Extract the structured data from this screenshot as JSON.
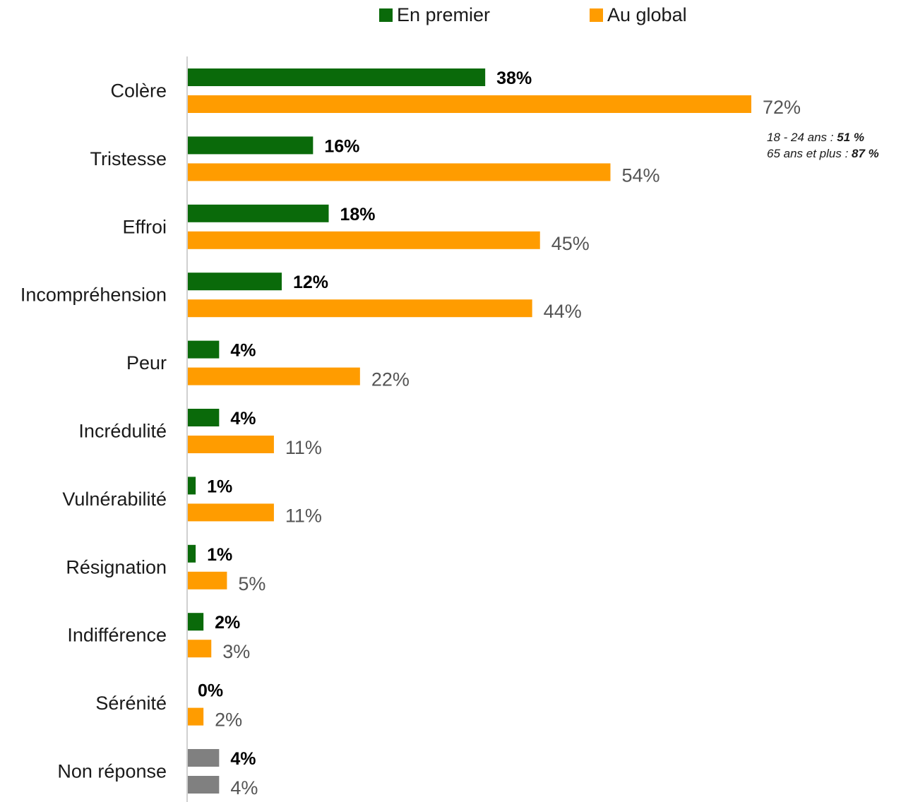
{
  "legend": {
    "first_label": "En premier",
    "global_label": "Au global"
  },
  "colors": {
    "first": "#0a6a0a",
    "global": "#ff9c00",
    "nonresponse": "#808080",
    "axis": "#d0d0d0",
    "first_label": "#000000",
    "global_label": "#555555"
  },
  "chart_data": {
    "type": "bar",
    "orientation": "horizontal",
    "categories": [
      "Colère",
      "Tristesse",
      "Effroi",
      "Incompréhension",
      "Peur",
      "Incrédulité",
      "Vulnérabilité",
      "Résignation",
      "Indifférence",
      "Sérénité",
      "Non réponse"
    ],
    "series": [
      {
        "name": "En premier",
        "values": [
          38,
          16,
          18,
          12,
          4,
          4,
          1,
          1,
          2,
          0,
          4
        ],
        "labels": [
          "38%",
          "16%",
          "18%",
          "12%",
          "4%",
          "4%",
          "1%",
          "1%",
          "2%",
          "0%",
          "4%"
        ]
      },
      {
        "name": "Au global",
        "values": [
          72,
          54,
          45,
          44,
          22,
          11,
          11,
          5,
          3,
          2,
          4
        ],
        "labels": [
          "72%",
          "54%",
          "45%",
          "44%",
          "22%",
          "11%",
          "11%",
          "5%",
          "3%",
          "2%",
          "4%"
        ]
      }
    ],
    "xlim": [
      0,
      72
    ],
    "legend_position": "top-center",
    "grid": false,
    "annotation": {
      "line1_prefix": "18 - 24 ans : ",
      "line1_value": "51 %",
      "line2_prefix": "65 ans et plus : ",
      "line2_value": "87 %"
    }
  }
}
